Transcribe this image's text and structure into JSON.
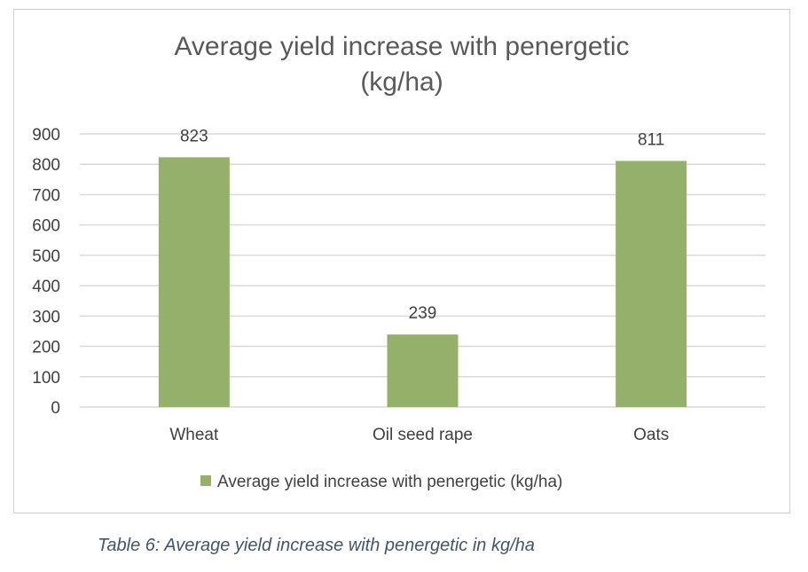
{
  "chart_data": {
    "type": "bar",
    "title": "Average yield increase with penergetic (kg/ha)",
    "title_lines": [
      "Average yield increase with penergetic",
      "(kg/ha)"
    ],
    "categories": [
      "Wheat",
      "Oil seed rape",
      "Oats"
    ],
    "series": [
      {
        "name": "Average yield increase with penergetic (kg/ha)",
        "values": [
          823,
          239,
          811
        ],
        "color": "#94B06A"
      }
    ],
    "ylim": [
      0,
      900
    ],
    "yticks": [
      0,
      100,
      200,
      300,
      400,
      500,
      600,
      700,
      800,
      900
    ],
    "grid": true,
    "legend": "bottom",
    "data_labels": true
  },
  "caption": "Table 6: Average yield increase with penergetic in kg/ha"
}
